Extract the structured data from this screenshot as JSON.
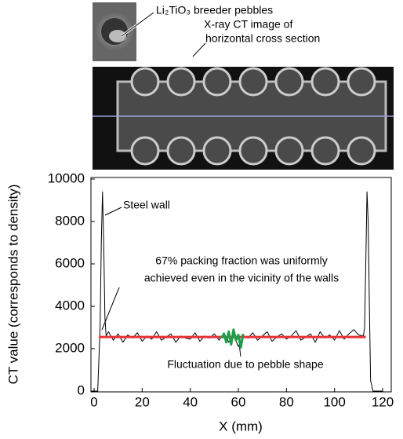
{
  "chart_data": {
    "type": "line",
    "xlabel": "X (mm)",
    "ylabel": "CT value (corresponds to density)",
    "xlim": [
      0,
      120
    ],
    "xticks": [
      0,
      20,
      40,
      60,
      80,
      100,
      120
    ],
    "ylim": [
      0,
      10000
    ],
    "yticks": [
      0,
      2000,
      4000,
      6000,
      8000,
      10000
    ],
    "annotations": [
      "Li₂TiO₃ breeder pebbles",
      "X-ray CT image of",
      "horizontal cross section",
      "Steel wall",
      "67% packing fraction was uniformly",
      "achieved even in the vicinity of the walls",
      "Fluctuation due to pebble shape"
    ],
    "series": [
      {
        "color": "#000000",
        "x": [
          0,
          1.5,
          2.5,
          3,
          3.5,
          4,
          4.5,
          5,
          6,
          8,
          10,
          12,
          14,
          16,
          18,
          20,
          22,
          24,
          26,
          28,
          30,
          32,
          34,
          36,
          38,
          40,
          42,
          44,
          46,
          48,
          50,
          52,
          54,
          56,
          58,
          60,
          62,
          64,
          66,
          68,
          70,
          72,
          74,
          76,
          78,
          80,
          82,
          84,
          86,
          88,
          90,
          92,
          94,
          96,
          98,
          100,
          102,
          104,
          106,
          108,
          110,
          112,
          112.5,
          113,
          113.5,
          114,
          114.5,
          115,
          116,
          120
        ],
        "values": [
          0,
          0,
          3000,
          7000,
          9400,
          7000,
          3500,
          2600,
          2800,
          2400,
          2700,
          2300,
          2650,
          2500,
          2750,
          2350,
          2600,
          2450,
          2800,
          2400,
          2550,
          2700,
          2300,
          2600,
          2500,
          2450,
          2750,
          2350,
          2600,
          2500,
          2700,
          2400,
          2750,
          2300,
          2650,
          2100,
          2600,
          2500,
          2750,
          2400,
          2600,
          2800,
          2350,
          2550,
          2700,
          2450,
          2600,
          2850,
          2400,
          2550,
          2700,
          2300,
          2800,
          2500,
          2650,
          2400,
          2850,
          2450,
          2700,
          2900,
          2650,
          2600,
          3000,
          6000,
          9400,
          8000,
          4000,
          500,
          0,
          0
        ]
      },
      {
        "color": "#e8333a",
        "x": [
          2,
          113
        ],
        "values": [
          2550,
          2550
        ]
      },
      {
        "color": "#1e9e4a",
        "x": [
          53,
          54,
          55,
          56,
          57,
          58,
          59,
          60,
          61,
          62
        ],
        "values": [
          2500,
          2700,
          2300,
          2800,
          2200,
          2900,
          2400,
          2650,
          2050,
          2700
        ]
      }
    ]
  }
}
